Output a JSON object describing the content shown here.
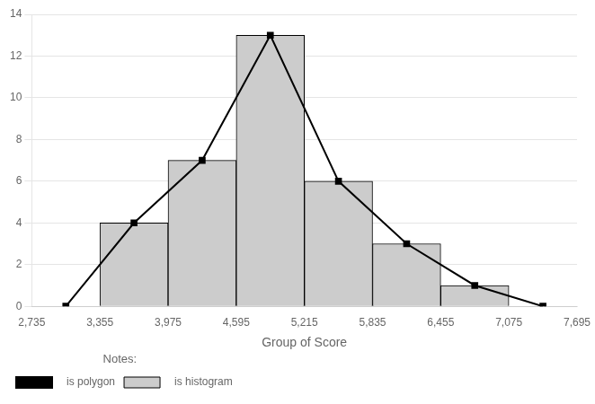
{
  "chart_data": {
    "type": "histogram",
    "xlabel": "Group of Score",
    "bins": [
      3355,
      3975,
      4595,
      5215,
      5835,
      6455,
      7075
    ],
    "series": [
      {
        "name": "   is histogram",
        "type": "bar",
        "color": "#cccccc",
        "values": [
          4,
          7,
          13,
          6,
          3,
          1
        ]
      },
      {
        "name": "   is polygon",
        "type": "line",
        "color": "#000000",
        "marker": "square",
        "x": [
          3045,
          3665,
          4285,
          4905,
          5525,
          6145,
          6765,
          7385
        ],
        "values": [
          0,
          4,
          7,
          13,
          6,
          3,
          1,
          0
        ]
      }
    ],
    "xlim": [
      2735,
      7695
    ],
    "xticks": [
      {
        "value": 2735,
        "label": "2,735"
      },
      {
        "value": 3355,
        "label": "3,355"
      },
      {
        "value": 3975,
        "label": "3,975"
      },
      {
        "value": 4595,
        "label": "4,595"
      },
      {
        "value": 5215,
        "label": "5,215"
      },
      {
        "value": 5835,
        "label": "5,835"
      },
      {
        "value": 6455,
        "label": "6,455"
      },
      {
        "value": 7075,
        "label": "7,075"
      },
      {
        "value": 7695,
        "label": "7,695"
      }
    ],
    "ylim": [
      0,
      14
    ],
    "yticks": [
      0,
      2,
      4,
      6,
      8,
      10,
      12,
      14
    ],
    "grid": "y",
    "legend": "bottom",
    "annotations": [
      "Notes:"
    ]
  }
}
